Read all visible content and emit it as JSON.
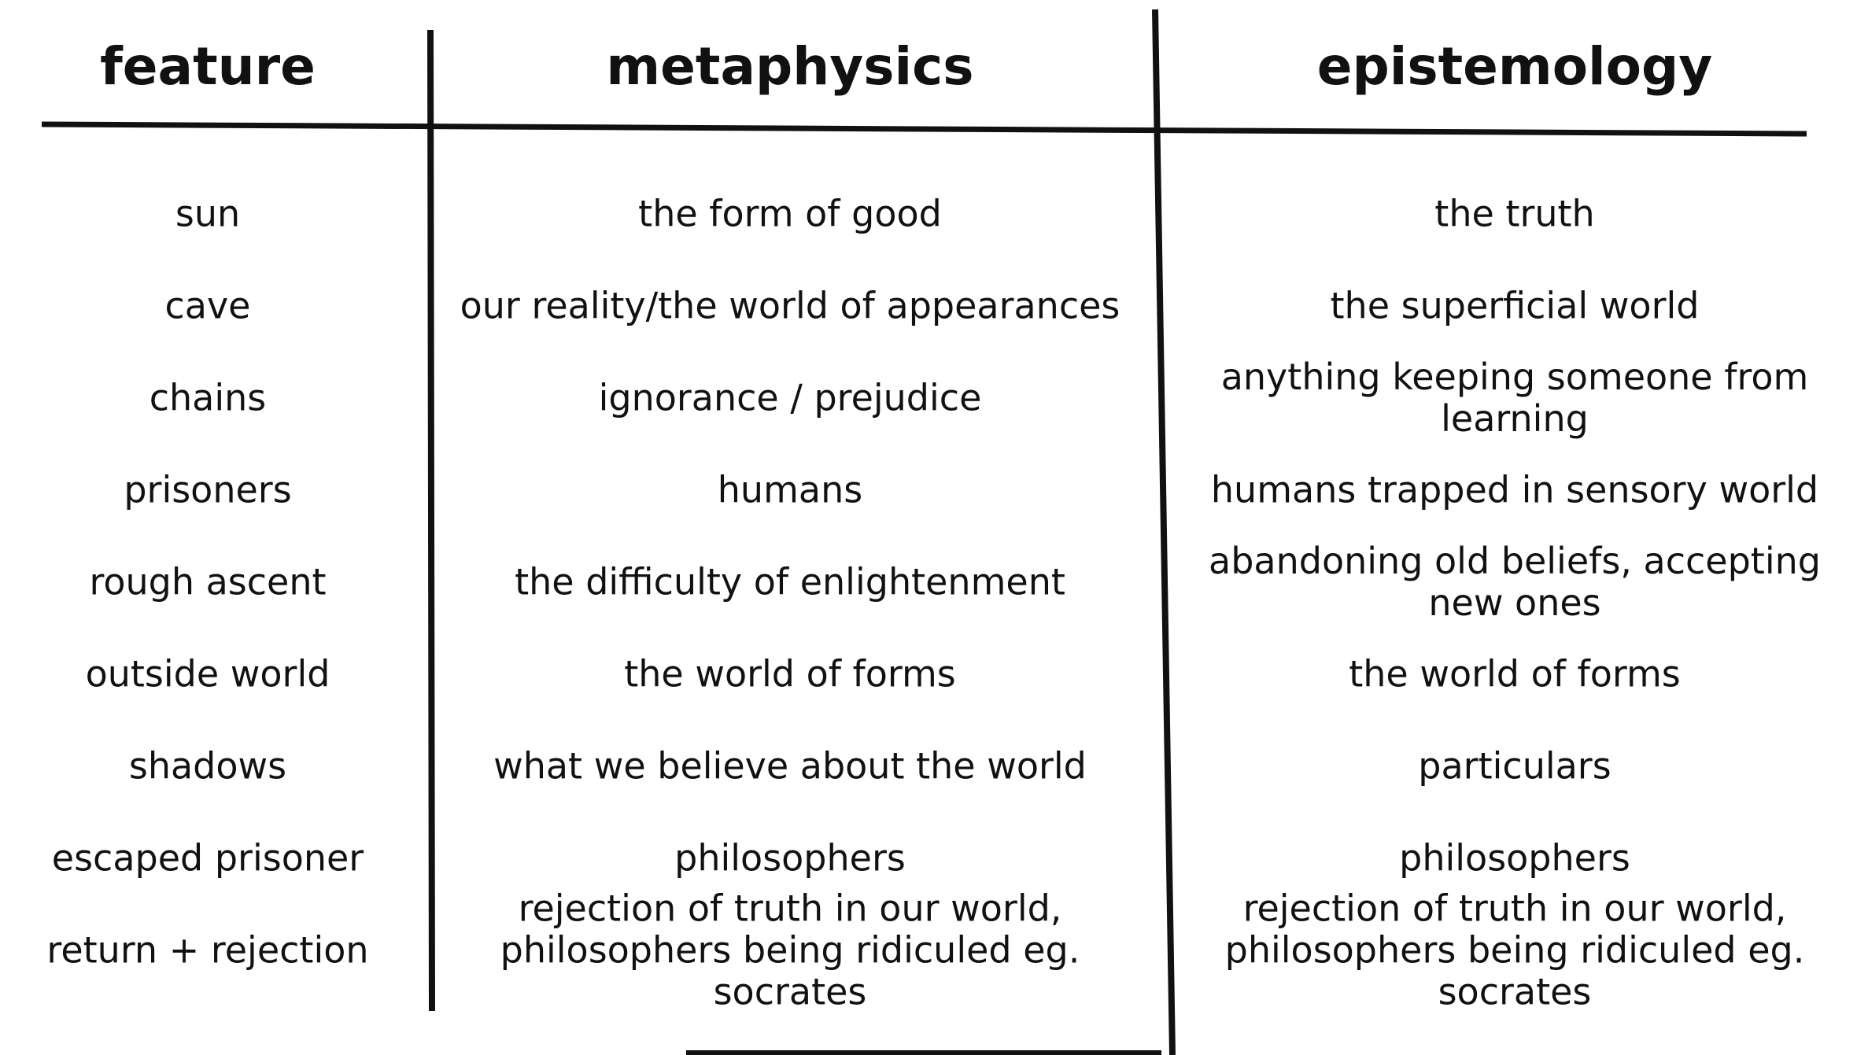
{
  "table": {
    "headers": [
      "feature",
      "metaphysics",
      "epistemology"
    ],
    "rows": [
      [
        "sun",
        "the form of good",
        "the truth"
      ],
      [
        "cave",
        "our reality/the world of appearances",
        "the superficial world"
      ],
      [
        "chains",
        "ignorance / prejudice",
        "anything keeping someone from learning"
      ],
      [
        "prisoners",
        "humans",
        "humans trapped in sensory world"
      ],
      [
        "rough ascent",
        "the difficulty of enlightenment",
        "abandoning old beliefs, accepting new ones"
      ],
      [
        "outside world",
        "the world of forms",
        "the world of forms"
      ],
      [
        "shadows",
        "what we believe about the world",
        "particulars"
      ],
      [
        "escaped prisoner",
        "philosophers",
        "philosophers"
      ],
      [
        "return + rejection",
        "rejection of truth in our world, philosophers being ridiculed eg. socrates",
        "rejection of truth in our world, philosophers being ridiculed eg. socrates"
      ]
    ]
  }
}
